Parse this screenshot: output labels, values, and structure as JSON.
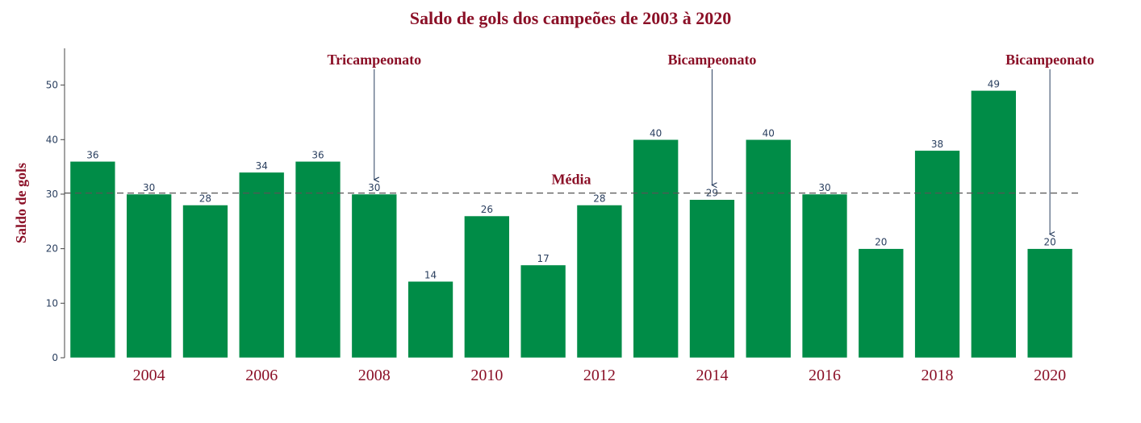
{
  "chart_data": {
    "type": "bar",
    "title": "Saldo de gols dos campeões de 2003 à 2020",
    "ylabel": "Saldo de gols",
    "xlabel": "",
    "categories": [
      2003,
      2004,
      2005,
      2006,
      2007,
      2008,
      2009,
      2010,
      2011,
      2012,
      2013,
      2014,
      2015,
      2016,
      2017,
      2018,
      2019,
      2020
    ],
    "values": [
      36,
      30,
      28,
      34,
      36,
      30,
      14,
      26,
      17,
      28,
      40,
      29,
      40,
      30,
      20,
      38,
      49,
      20
    ],
    "x_tick_labels": [
      "2004",
      "2006",
      "2008",
      "2010",
      "2012",
      "2014",
      "2016",
      "2018",
      "2020"
    ],
    "y_ticks": [
      0,
      10,
      20,
      30,
      40,
      50
    ],
    "ylim": [
      0,
      56
    ],
    "mean_line": {
      "label": "Média",
      "value": 30.2
    },
    "annotations": [
      {
        "text": "Tricampeonato",
        "x": 2008,
        "y": 30
      },
      {
        "text": "Bicampeonato",
        "x": 2014,
        "y": 29
      },
      {
        "text": "Bicampeonato",
        "x": 2020,
        "y": 20
      }
    ],
    "colors": {
      "bar": "#008c47",
      "title": "#8b1027",
      "annotation": "#8b1027",
      "mean_line": "#555555",
      "arrow": "#2a3f5f",
      "axis": "#444444"
    },
    "grid": false
  }
}
